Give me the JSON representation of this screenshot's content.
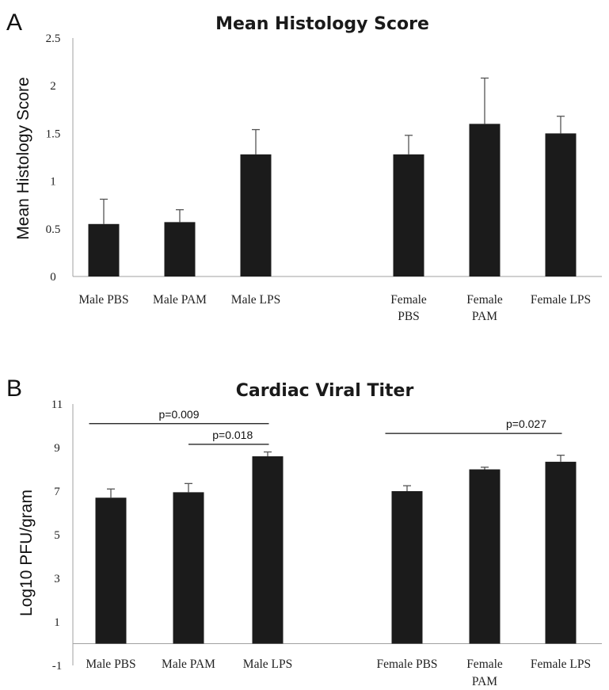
{
  "chart_data": [
    {
      "panel": "A",
      "type": "bar",
      "title": "Mean Histology Score",
      "xlabel": "",
      "ylabel": "Mean Histology Score",
      "ylim": [
        0,
        2.5
      ],
      "yticks": [
        "0",
        "0.5",
        "1",
        "1.5",
        "2",
        "2.5"
      ],
      "grid": false,
      "legend": "none",
      "bar_color": "#1b1b1b",
      "categories": [
        [
          "Male PBS"
        ],
        [
          "Male PAM"
        ],
        [
          "Male LPS"
        ],
        [
          "Female",
          "PBS"
        ],
        [
          "Female",
          "PAM"
        ],
        [
          "Female LPS"
        ]
      ],
      "values": [
        0.55,
        0.57,
        1.28,
        1.28,
        1.6,
        1.5
      ],
      "error_upper": [
        0.81,
        0.7,
        1.54,
        1.48,
        2.08,
        1.68
      ],
      "annotations": []
    },
    {
      "panel": "B",
      "type": "bar",
      "title": "Cardiac Viral Titer",
      "xlabel": "",
      "ylabel": "Log10 PFU/gram",
      "ylim": [
        -1,
        11
      ],
      "yticks": [
        "-1",
        "1",
        "3",
        "5",
        "7",
        "9",
        "11"
      ],
      "grid": false,
      "legend": "none",
      "bar_color": "#1b1b1b",
      "categories": [
        [
          "Male PBS"
        ],
        [
          "Male PAM"
        ],
        [
          "Male LPS"
        ],
        [
          "Female PBS"
        ],
        [
          "Female",
          "PAM"
        ],
        [
          "Female LPS"
        ]
      ],
      "values": [
        6.7,
        6.95,
        8.6,
        7.0,
        8.0,
        8.35
      ],
      "error_upper": [
        7.1,
        7.35,
        8.8,
        7.25,
        8.1,
        8.65
      ],
      "annotations": [
        {
          "label": "p=0.009",
          "from": 0,
          "to": 2,
          "y": 10.1
        },
        {
          "label": "p=0.018",
          "from": 1,
          "to": 2,
          "y": 9.15
        },
        {
          "label": "p=0.027",
          "from": 3,
          "to": 5,
          "y": 9.65
        }
      ]
    }
  ]
}
